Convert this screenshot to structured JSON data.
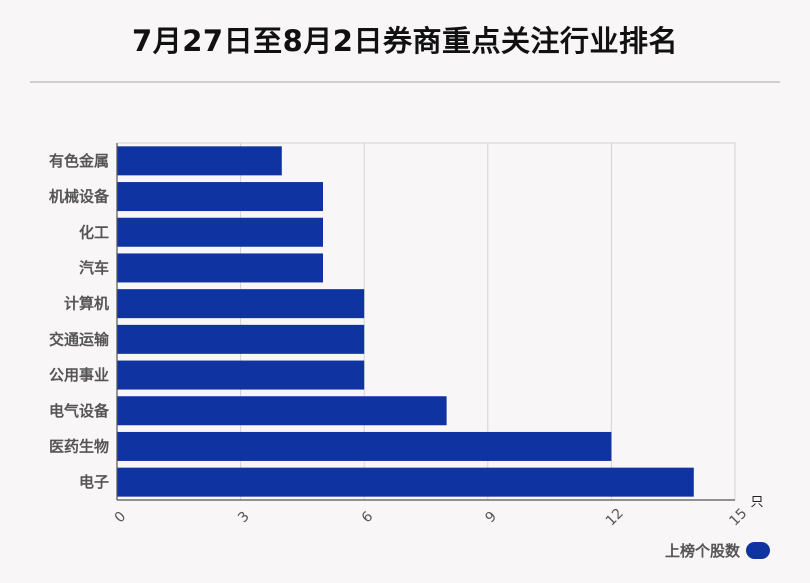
{
  "chart_data": {
    "type": "bar",
    "orientation": "horizontal",
    "title": "7月27日至8月2日券商重点关注行业排名",
    "categories": [
      "有色金属",
      "机械设备",
      "化工",
      "汽车",
      "计算机",
      "交通运输",
      "公用事业",
      "电气设备",
      "医药生物",
      "电子"
    ],
    "series": [
      {
        "name": "上榜个股数",
        "values": [
          4,
          5,
          5,
          5,
          6,
          6,
          6,
          8,
          12,
          14
        ]
      }
    ],
    "xlim": [
      0,
      15
    ],
    "xticks": [
      0,
      3,
      6,
      9,
      12,
      15
    ],
    "xunit": "只",
    "grid": true,
    "legend_position": "bottom-right",
    "colors": {
      "bar": "#0f33a0",
      "grid": "#d4d4d4",
      "axis": "#555555"
    }
  }
}
